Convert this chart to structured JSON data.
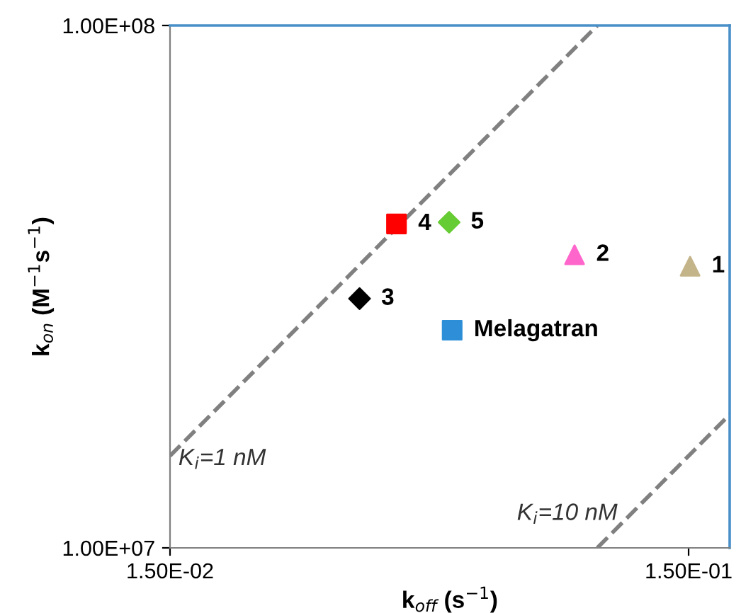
{
  "chart_data": {
    "type": "scatter",
    "xlabel": "k$_{off}$ (s$^{−1}$)",
    "ylabel": "k$_{on}$ (M$^{−1}$s$^{−1}$)",
    "log": "xy",
    "xlim": [
      0.015,
      0.18
    ],
    "ylim": [
      10000000,
      100000000
    ],
    "xticks": [
      {
        "value": 0.015,
        "label": "1.50E-02"
      },
      {
        "value": 0.15,
        "label": "1.50E-01"
      }
    ],
    "yticks": [
      {
        "value": 10000000,
        "label": "1.00E+07"
      },
      {
        "value": 100000000,
        "label": "1.00E+08"
      }
    ],
    "grid": false,
    "legend": false,
    "series": [
      {
        "name": "1",
        "color": "#c4b48a",
        "marker": "triangle",
        "x": [
          0.151
        ],
        "values": [
          34600000
        ]
      },
      {
        "name": "2",
        "color": "#ff66cc",
        "marker": "triangle",
        "x": [
          0.0904
        ],
        "values": [
          36400000
        ]
      },
      {
        "name": "3",
        "color": "#000000",
        "marker": "diamond",
        "x": [
          0.0348
        ],
        "values": [
          30000000
        ]
      },
      {
        "name": "4",
        "color": "#ff0000",
        "marker": "square",
        "x": [
          0.041
        ],
        "values": [
          41700000
        ]
      },
      {
        "name": "5",
        "color": "#66cc33",
        "marker": "diamond",
        "x": [
          0.0518
        ],
        "values": [
          42000000
        ]
      },
      {
        "name": "Melagatran",
        "color": "#2e8fd8",
        "marker": "square",
        "x": [
          0.0525
        ],
        "values": [
          26100000
        ]
      },
      {
        "type": "line",
        "color": "#808080",
        "line_style": "dashed",
        "x": [
          0.015,
          0.1
        ],
        "values": [
          15000000,
          100000000
        ]
      },
      {
        "type": "line",
        "color": "#808080",
        "line_style": "dashed",
        "x": [
          0.1,
          0.18
        ],
        "values": [
          10000000,
          18000000
        ]
      }
    ],
    "annotations": [
      "K$_{i}$=1 nM",
      "K$_{i}$=10 nM"
    ]
  }
}
